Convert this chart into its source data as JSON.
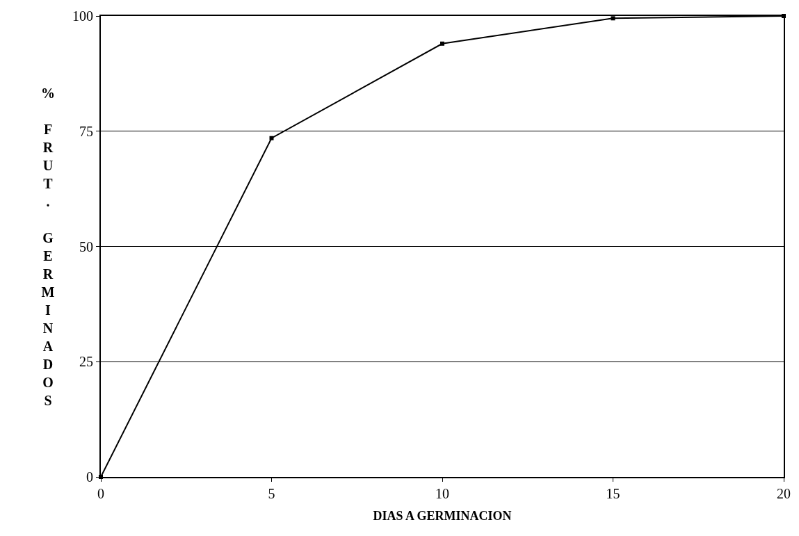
{
  "chart_data": {
    "type": "line",
    "xlabel": "DIAS A GERMINACION",
    "ylabel": "% FRUT. GERMINADOS",
    "x": [
      0,
      5,
      10,
      15,
      20
    ],
    "series": [
      {
        "color": "#000000",
        "values": [
          0,
          73.5,
          94,
          99.5,
          100
        ]
      }
    ],
    "xlim": [
      0,
      20
    ],
    "xticks": [
      0,
      5,
      10,
      15,
      20
    ],
    "ylim": [
      0,
      100
    ],
    "yticks": [
      0,
      25,
      50,
      75,
      100
    ],
    "grid": "y",
    "marker": "square",
    "line_style": "solid",
    "legend": false
  }
}
